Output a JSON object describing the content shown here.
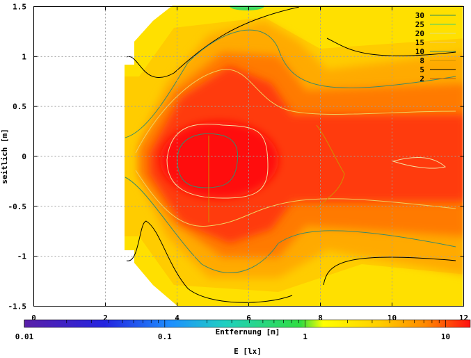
{
  "chart_data": {
    "type": "heatmap",
    "xlabel": "Entfernung [m]",
    "ylabel": "seitlich [m]",
    "xlim": [
      0,
      12
    ],
    "ylim": [
      -1.5,
      1.5
    ],
    "x_ticks": [
      "0",
      "2",
      "4",
      "6",
      "8",
      "10",
      "12"
    ],
    "x_tick_values": [
      0,
      2,
      4,
      6,
      8,
      10,
      12
    ],
    "y_ticks": [
      "1.5",
      "1",
      "0.5",
      "0",
      "-0.5",
      "-1",
      "-1.5"
    ],
    "y_tick_values": [
      1.5,
      1,
      0.5,
      0,
      -0.5,
      -1,
      -1.5
    ],
    "grid": true,
    "legend_position": "top-right",
    "contour_levels": [
      {
        "label": "30",
        "value": 30,
        "color": "#2e8b57"
      },
      {
        "label": "25",
        "value": 25,
        "color": "#40d070"
      },
      {
        "label": "20",
        "value": 20,
        "color": "#e0e080"
      },
      {
        "label": "15",
        "value": 15,
        "color": "#f0d060"
      },
      {
        "label": "10",
        "value": 10,
        "color": "#3a8a6a"
      },
      {
        "label": "8",
        "value": 8,
        "color": "#d09000"
      },
      {
        "label": "5",
        "value": 5,
        "color": "#000000"
      },
      {
        "label": "2",
        "value": 2,
        "color": "#c06000"
      }
    ],
    "colorbar": {
      "label": "E [lx]",
      "scale": "log",
      "range": [
        0.01,
        15
      ],
      "tick_labels": [
        "0.01",
        "0.1",
        "1",
        "10"
      ],
      "tick_values": [
        0.01,
        0.1,
        1,
        10
      ]
    }
  }
}
